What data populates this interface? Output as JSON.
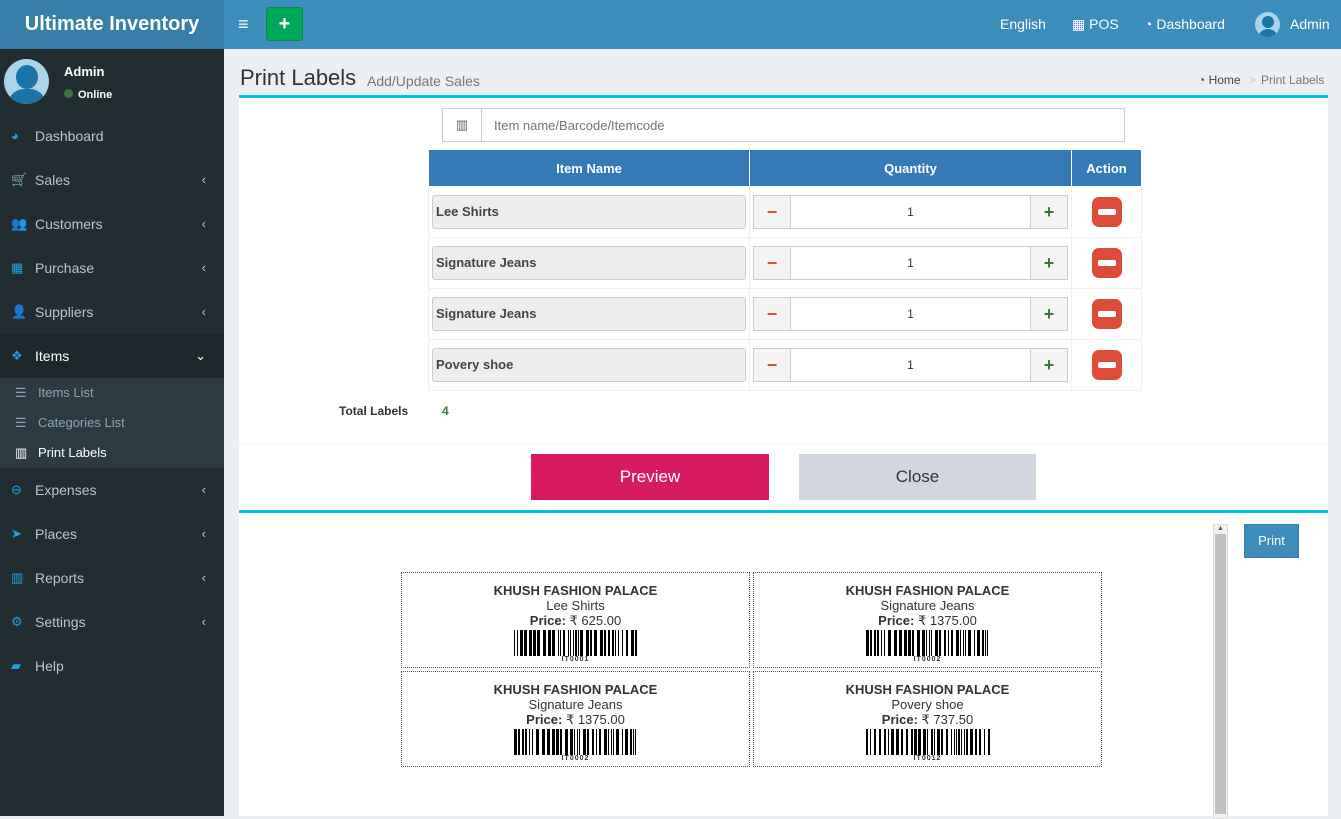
{
  "app": {
    "title": "Ultimate Inventory"
  },
  "header": {
    "language": "English",
    "pos": "POS",
    "dashboard": "Dashboard",
    "user": "Admin"
  },
  "user": {
    "name": "Admin",
    "status": "Online"
  },
  "sidebar": {
    "items": [
      {
        "label": "Dashboard",
        "icon": "dashboard-icon"
      },
      {
        "label": "Sales",
        "icon": "cart-icon"
      },
      {
        "label": "Customers",
        "icon": "users-icon"
      },
      {
        "label": "Purchase",
        "icon": "grid-icon"
      },
      {
        "label": "Suppliers",
        "icon": "user-plus-icon"
      },
      {
        "label": "Items",
        "icon": "cubes-icon"
      },
      {
        "label": "Expenses",
        "icon": "minus-circle-icon"
      },
      {
        "label": "Places",
        "icon": "paper-plane-icon"
      },
      {
        "label": "Reports",
        "icon": "bar-chart-icon"
      },
      {
        "label": "Settings",
        "icon": "gears-icon"
      },
      {
        "label": "Help",
        "icon": "book-icon"
      }
    ],
    "submenu": [
      {
        "label": "Items List"
      },
      {
        "label": "Categories List"
      },
      {
        "label": "Print Labels"
      }
    ]
  },
  "page": {
    "title": "Print Labels",
    "subtitle": "Add/Update Sales",
    "breadcrumb": [
      "Home",
      "Print Labels"
    ]
  },
  "search": {
    "placeholder": "Item name/Barcode/Itemcode"
  },
  "table": {
    "headers": [
      "Item Name",
      "Quantity",
      "Action"
    ],
    "rows": [
      {
        "name": "Lee Shirts",
        "qty": "1"
      },
      {
        "name": "Signature Jeans",
        "qty": "1"
      },
      {
        "name": "Signature Jeans",
        "qty": "1"
      },
      {
        "name": "Povery shoe",
        "qty": "1"
      }
    ]
  },
  "total": {
    "label": "Total Labels",
    "value": "4"
  },
  "buttons": {
    "preview": "Preview",
    "close": "Close",
    "print": "Print"
  },
  "labels": [
    {
      "shop": "KHUSH FASHION PALACE",
      "item": "Lee Shirts",
      "price_label": "Price:",
      "price": "₹ 625.00",
      "code": "IT0001"
    },
    {
      "shop": "KHUSH FASHION PALACE",
      "item": "Signature Jeans",
      "price_label": "Price:",
      "price": "₹ 1375.00",
      "code": "IT0002"
    },
    {
      "shop": "KHUSH FASHION PALACE",
      "item": "Signature Jeans",
      "price_label": "Price:",
      "price": "₹ 1375.00",
      "code": "IT0002"
    },
    {
      "shop": "KHUSH FASHION PALACE",
      "item": "Povery shoe",
      "price_label": "Price:",
      "price": "₹ 737.50",
      "code": "IT0012"
    }
  ],
  "colors": {
    "header": "#3c8dbc",
    "sidebar": "#222d32",
    "preview": "#d81b60",
    "close": "#d2d6de",
    "accent": "#00c0ef"
  }
}
